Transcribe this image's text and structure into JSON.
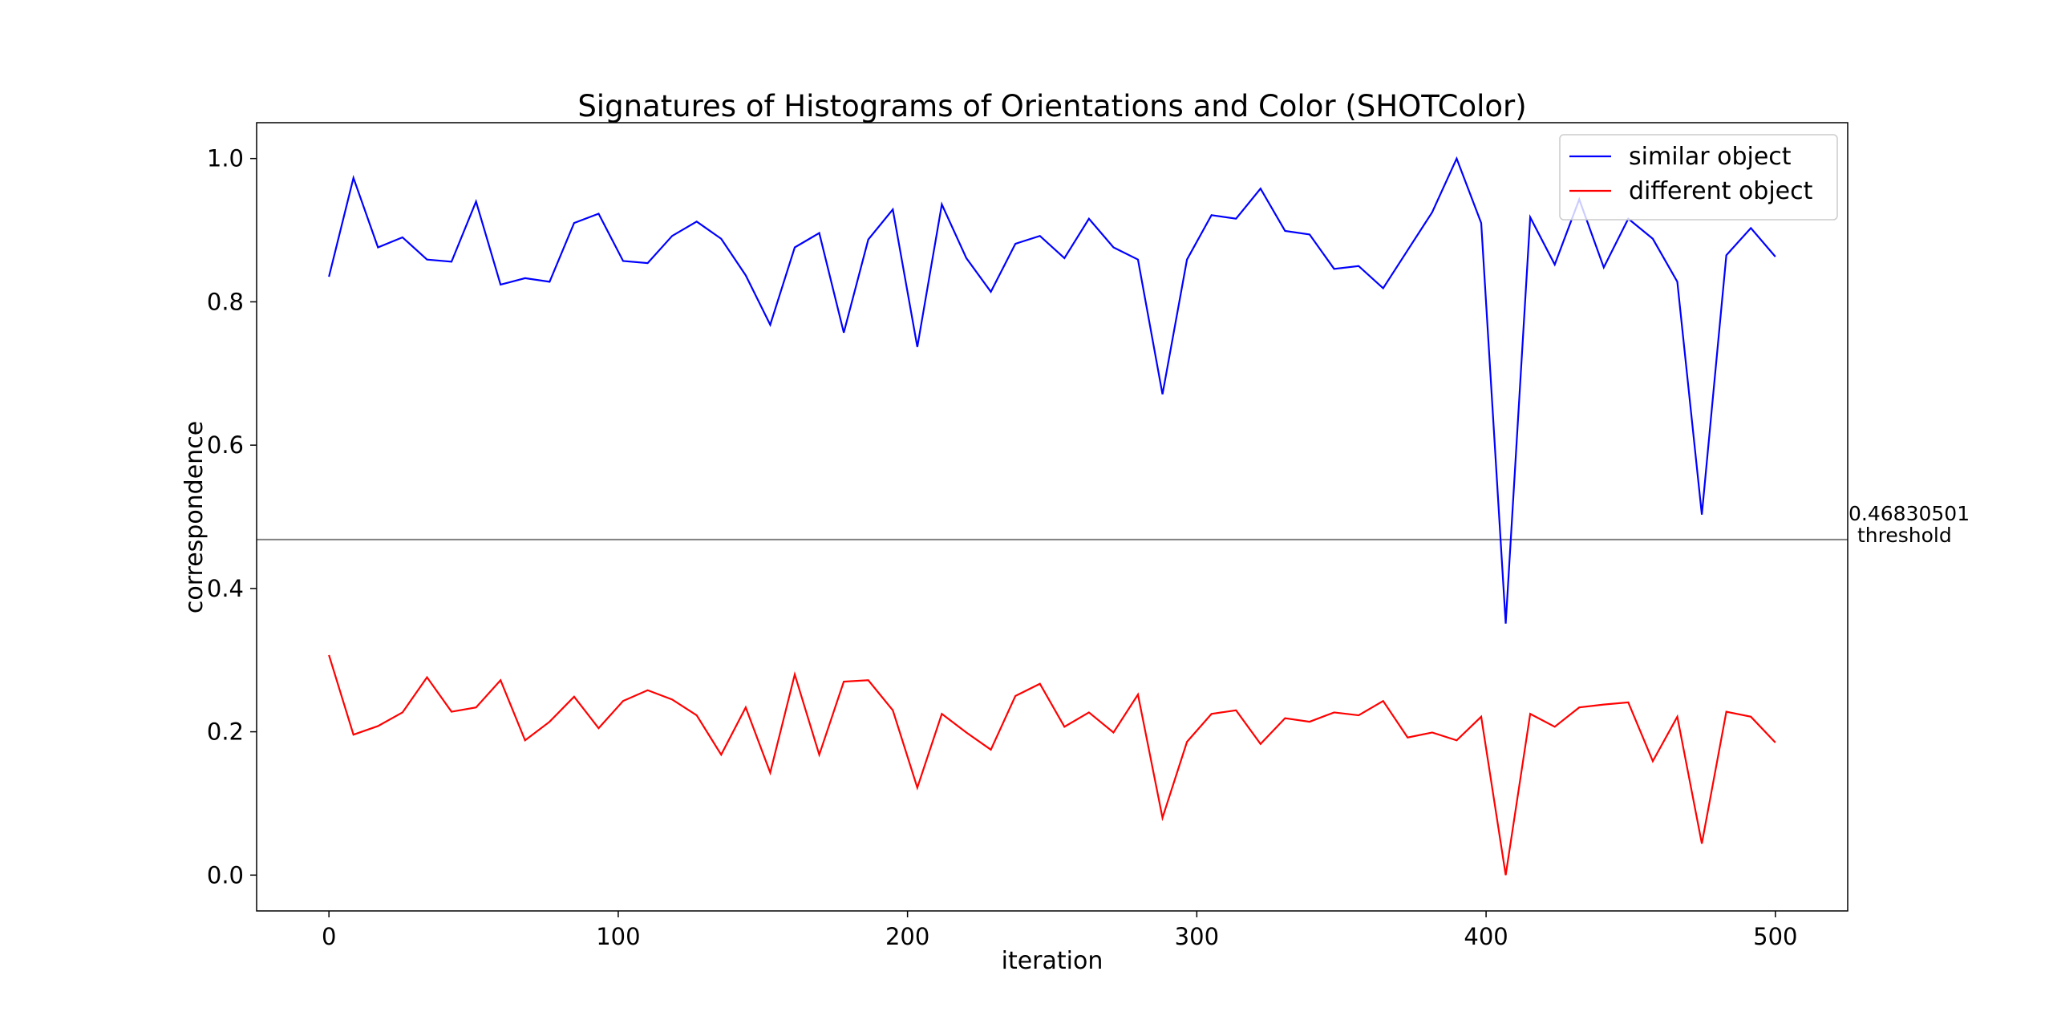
{
  "chart_data": {
    "type": "line",
    "title": "Signatures of Histograms of Orientations and Color (SHOTColor)",
    "xlabel": "iteration",
    "ylabel": "correspondence",
    "x": [
      0,
      8.47,
      16.95,
      25.42,
      33.9,
      42.37,
      50.85,
      59.32,
      67.8,
      76.27,
      84.75,
      93.22,
      101.69,
      110.17,
      118.64,
      127.12,
      135.59,
      144.07,
      152.54,
      161.02,
      169.49,
      177.97,
      186.44,
      194.92,
      203.39,
      211.86,
      220.34,
      228.81,
      237.29,
      245.76,
      254.24,
      262.71,
      271.19,
      279.66,
      288.14,
      296.61,
      305.08,
      313.56,
      322.03,
      330.51,
      338.98,
      347.46,
      355.93,
      364.41,
      372.88,
      381.36,
      389.83,
      398.31,
      406.78,
      415.25,
      423.73,
      432.2,
      440.68,
      449.15,
      457.63,
      466.1,
      474.58,
      483.05,
      491.53,
      500
    ],
    "series": [
      {
        "name": "similar object",
        "color": "#0000ff",
        "values": [
          0.835,
          0.973,
          0.876,
          0.89,
          0.859,
          0.856,
          0.94,
          0.824,
          0.833,
          0.828,
          0.91,
          0.923,
          0.857,
          0.854,
          0.892,
          0.912,
          0.888,
          0.837,
          0.768,
          0.876,
          0.896,
          0.757,
          0.887,
          0.929,
          0.737,
          0.936,
          0.861,
          0.814,
          0.881,
          0.892,
          0.861,
          0.916,
          0.876,
          0.859,
          0.671,
          0.859,
          0.921,
          0.916,
          0.958,
          0.899,
          0.894,
          0.846,
          0.85,
          0.819,
          0.872,
          0.925,
          1.0,
          0.91,
          0.351,
          0.918,
          0.852,
          0.943,
          0.848,
          0.916,
          0.888,
          0.828,
          0.503,
          0.865,
          0.903,
          0.863
        ]
      },
      {
        "name": "different object",
        "color": "#ff0000",
        "values": [
          0.307,
          0.196,
          0.208,
          0.227,
          0.276,
          0.228,
          0.234,
          0.272,
          0.188,
          0.214,
          0.249,
          0.205,
          0.243,
          0.258,
          0.245,
          0.223,
          0.168,
          0.234,
          0.143,
          0.28,
          0.168,
          0.27,
          0.272,
          0.23,
          0.122,
          0.225,
          0.199,
          0.175,
          0.25,
          0.267,
          0.207,
          0.227,
          0.199,
          0.252,
          0.08,
          0.186,
          0.225,
          0.23,
          0.183,
          0.219,
          0.214,
          0.227,
          0.223,
          0.243,
          0.192,
          0.199,
          0.188,
          0.221,
          0.0,
          0.225,
          0.207,
          0.234,
          0.238,
          0.241,
          0.159,
          0.221,
          0.044,
          0.228,
          0.221,
          0.185
        ]
      }
    ],
    "threshold": {
      "value": 0.46830501,
      "label": "threshold",
      "color": "#808080"
    },
    "xlim": [
      -25,
      525
    ],
    "xticks": [
      0,
      100,
      200,
      300,
      400,
      500
    ],
    "ylim": [
      -0.05,
      1.05
    ],
    "yticks": [
      {
        "value": 0,
        "label": "0.0"
      },
      {
        "value": 0.2,
        "label": "0.2"
      },
      {
        "value": 0.4,
        "label": "0.4"
      },
      {
        "value": 0.6,
        "label": "0.6"
      },
      {
        "value": 0.8,
        "label": "0.8"
      },
      {
        "value": 1,
        "label": "1.0"
      }
    ],
    "legend": "upper right",
    "grid": false
  }
}
